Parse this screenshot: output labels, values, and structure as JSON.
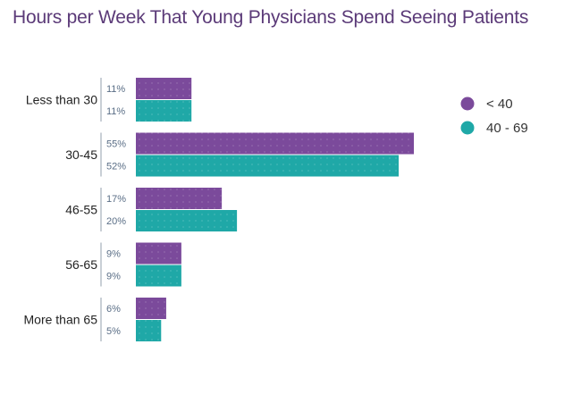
{
  "title": "Hours per Week That Young Physicians Spend Seeing Patients",
  "chart_data": {
    "type": "bar",
    "orientation": "horizontal",
    "title": "Hours per Week That Young Physicians Spend Seeing Patients",
    "categories": [
      "Less than 30",
      "30-45",
      "46-55",
      "56-65",
      "More than 65"
    ],
    "series": [
      {
        "name": "< 40",
        "color": "#7b4a9b",
        "values": [
          11,
          55,
          17,
          9,
          6
        ]
      },
      {
        "name": "40 - 69",
        "color": "#1fa8a7",
        "values": [
          11,
          52,
          20,
          9,
          5
        ]
      }
    ],
    "value_suffix": "%",
    "xlim": [
      0,
      55
    ],
    "legend_position": "right",
    "grid": false
  }
}
